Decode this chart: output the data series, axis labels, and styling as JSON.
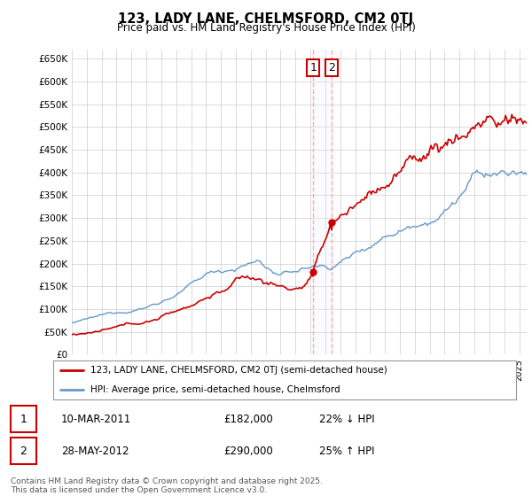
{
  "title": "123, LADY LANE, CHELMSFORD, CM2 0TJ",
  "subtitle": "Price paid vs. HM Land Registry's House Price Index (HPI)",
  "ylim": [
    0,
    670000
  ],
  "yticks": [
    0,
    50000,
    100000,
    150000,
    200000,
    250000,
    300000,
    350000,
    400000,
    450000,
    500000,
    550000,
    600000,
    650000
  ],
  "ytick_labels": [
    "£0",
    "£50K",
    "£100K",
    "£150K",
    "£200K",
    "£250K",
    "£300K",
    "£350K",
    "£400K",
    "£450K",
    "£500K",
    "£550K",
    "£600K",
    "£650K"
  ],
  "xlim_start": 1995.0,
  "xlim_end": 2025.5,
  "transaction1_date": 2011.19,
  "transaction1_price": 182000,
  "transaction2_date": 2012.41,
  "transaction2_price": 290000,
  "red_line_color": "#cc0000",
  "blue_line_color": "#6699cc",
  "grid_color": "#cccccc",
  "background_color": "#ffffff",
  "legend1_label": "123, LADY LANE, CHELMSFORD, CM2 0TJ (semi-detached house)",
  "legend2_label": "HPI: Average price, semi-detached house, Chelmsford",
  "vline_color": "#ffaaaa",
  "vspan_color": "#e8f0ff",
  "footer": "Contains HM Land Registry data © Crown copyright and database right 2025.\nThis data is licensed under the Open Government Licence v3.0."
}
